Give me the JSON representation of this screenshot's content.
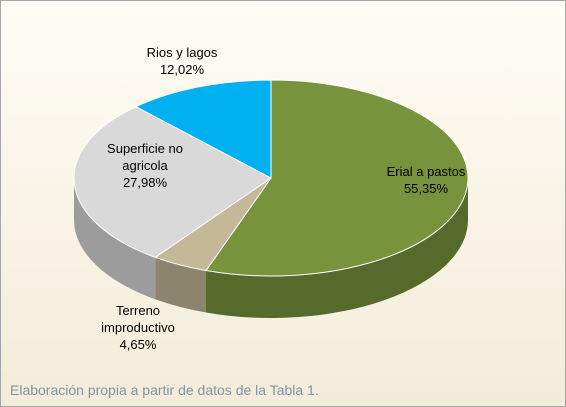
{
  "chart_data": {
    "type": "pie3d",
    "categories": [
      "Erial a pastos",
      "Terreno improductivo",
      "Superficie no agricola",
      "Rios y lagos"
    ],
    "values": [
      55.35,
      4.65,
      27.98,
      12.02
    ],
    "value_labels": [
      "55,35%",
      "4,65%",
      "27,98%",
      "12,02%"
    ],
    "colors": [
      "#77933c",
      "#c4b897",
      "#d9d9d9",
      "#00b0f0"
    ],
    "note": "Elaboración propia a partir de datos de la Tabla 1."
  }
}
